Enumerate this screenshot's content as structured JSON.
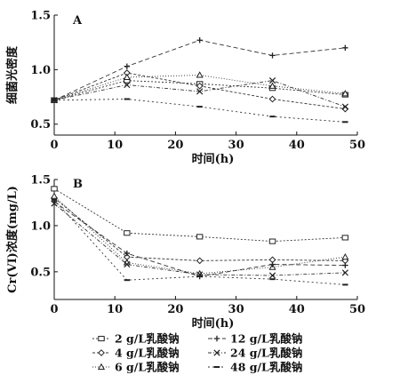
{
  "chart_data": [
    {
      "panel": "A",
      "type": "line",
      "xlabel": "时间(h)",
      "ylabel": "细菌光密度",
      "xlim": [
        0,
        50
      ],
      "ylim": [
        0.4,
        1.5
      ],
      "xticks": [
        0,
        10,
        20,
        30,
        40,
        50
      ],
      "yticks": [
        0.5,
        1.0,
        1.5
      ],
      "ytick_labels": [
        "0.5",
        "1.0",
        "1.5"
      ],
      "series": [
        {
          "name": "2 g/L乳酸钠",
          "marker": "square",
          "dash": "2,2",
          "x": [
            0,
            12,
            24,
            36,
            48
          ],
          "y": [
            0.72,
            0.9,
            0.87,
            0.83,
            0.77
          ]
        },
        {
          "name": "4 g/L乳酸钠",
          "marker": "diamond",
          "dash": "3,2",
          "x": [
            0,
            12,
            24,
            36,
            48
          ],
          "y": [
            0.72,
            0.97,
            0.85,
            0.73,
            0.64
          ]
        },
        {
          "name": "6 g/L乳酸钠",
          "marker": "triangle",
          "dash": "1,2",
          "x": [
            0,
            12,
            24,
            36,
            48
          ],
          "y": [
            0.72,
            0.93,
            0.95,
            0.85,
            0.78
          ]
        },
        {
          "name": "12 g/L乳酸钠",
          "marker": "cross",
          "dash": "5,3",
          "x": [
            0,
            12,
            24,
            36,
            48
          ],
          "y": [
            0.72,
            1.03,
            1.27,
            1.13,
            1.2
          ]
        },
        {
          "name": "24 g/L乳酸钠",
          "marker": "x",
          "dash": "4,2,1,2",
          "x": [
            0,
            12,
            24,
            36,
            48
          ],
          "y": [
            0.72,
            0.86,
            0.8,
            0.9,
            0.66
          ]
        },
        {
          "name": "48 g/L乳酸钠",
          "marker": "bar",
          "dash": "2,3",
          "x": [
            0,
            12,
            24,
            36,
            48
          ],
          "y": [
            0.72,
            0.73,
            0.66,
            0.57,
            0.52
          ]
        }
      ]
    },
    {
      "panel": "B",
      "type": "line",
      "xlabel": "时间(h)",
      "ylabel": "Cr(VI)浓度(mg/L)",
      "xlim": [
        0,
        50
      ],
      "ylim": [
        0.2,
        1.5
      ],
      "xticks": [
        0,
        10,
        20,
        30,
        40,
        50
      ],
      "yticks": [
        0.5,
        1.0,
        1.5
      ],
      "ytick_labels": [
        "0.5",
        "1.0",
        "1.5"
      ],
      "series": [
        {
          "name": "2 g/L乳酸钠",
          "marker": "square",
          "dash": "2,2",
          "x": [
            0,
            12,
            24,
            36,
            48
          ],
          "y": [
            1.4,
            0.92,
            0.88,
            0.83,
            0.87
          ]
        },
        {
          "name": "4 g/L乳酸钠",
          "marker": "diamond",
          "dash": "3,2",
          "x": [
            0,
            12,
            24,
            36,
            48
          ],
          "y": [
            1.3,
            0.66,
            0.62,
            0.63,
            0.62
          ]
        },
        {
          "name": "6 g/L乳酸钠",
          "marker": "triangle",
          "dash": "1,2",
          "x": [
            0,
            12,
            24,
            36,
            48
          ],
          "y": [
            1.32,
            0.6,
            0.48,
            0.55,
            0.66
          ]
        },
        {
          "name": "12 g/L乳酸钠",
          "marker": "cross",
          "dash": "5,3",
          "x": [
            0,
            12,
            24,
            36,
            48
          ],
          "y": [
            1.26,
            0.7,
            0.45,
            0.58,
            0.57
          ]
        },
        {
          "name": "24 g/L乳酸钠",
          "marker": "x",
          "dash": "4,2,1,2",
          "x": [
            0,
            12,
            24,
            36,
            48
          ],
          "y": [
            1.24,
            0.58,
            0.47,
            0.46,
            0.49
          ]
        },
        {
          "name": "48 g/L乳酸钠",
          "marker": "bar",
          "dash": "2,3",
          "x": [
            0,
            12,
            24,
            36,
            48
          ],
          "y": [
            1.28,
            0.41,
            0.45,
            0.42,
            0.36
          ]
        }
      ]
    }
  ],
  "legend": [
    {
      "label": "2 g/L乳酸钠",
      "marker": "square",
      "dash": "2,2"
    },
    {
      "label": "12 g/L乳酸钠",
      "marker": "cross",
      "dash": "5,3"
    },
    {
      "label": "4 g/L乳酸钠",
      "marker": "diamond",
      "dash": "3,2"
    },
    {
      "label": "24 g/L乳酸钠",
      "marker": "x",
      "dash": "4,2,1,2"
    },
    {
      "label": "6 g/L乳酸钠",
      "marker": "triangle",
      "dash": "1,2"
    },
    {
      "label": "48 g/L乳酸钠",
      "marker": "bar",
      "dash": "2,3"
    }
  ]
}
